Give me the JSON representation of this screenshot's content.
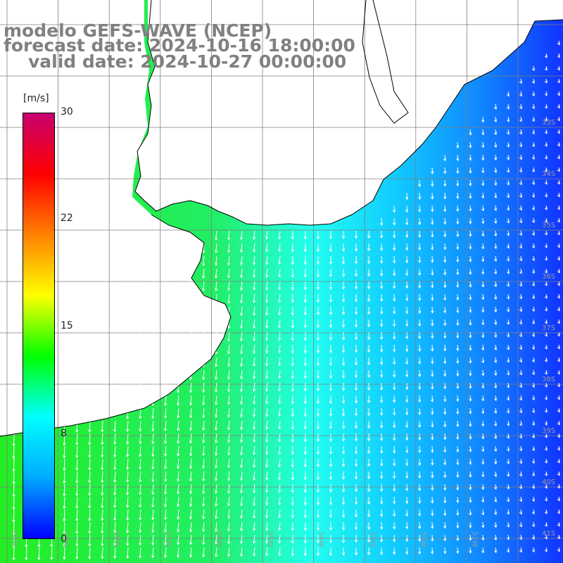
{
  "titles": {
    "model": "modelo GEFS-WAVE (NCEP)",
    "forecast": "forecast date: 2024-10-16 18:00:00",
    "valid": "valid date: 2024-10-27 00:00:00"
  },
  "colorbar": {
    "units": "[m/s]",
    "ticks": [
      "30",
      "22",
      "15",
      "8",
      "0"
    ],
    "tick_values": [
      30,
      22,
      15,
      8,
      0
    ],
    "range": [
      0,
      30
    ],
    "colors": [
      "#0000ff",
      "#00aaff",
      "#00ffff",
      "#00ff00",
      "#ffff00",
      "#ff8000",
      "#ff0000",
      "#c8006e"
    ]
  },
  "map": {
    "lat_labels": [
      "33S",
      "34S",
      "35S",
      "36S",
      "37S",
      "38S",
      "39S",
      "40S",
      "41S"
    ],
    "lat_values": [
      -33,
      -34,
      -35,
      -36,
      -37,
      -38,
      -39,
      -40,
      -41
    ],
    "lon_labels": [
      "60W",
      "59W",
      "58W",
      "57W",
      "56W",
      "55W",
      "54W",
      "53W",
      "52W",
      "51W"
    ],
    "lon_values": [
      -60,
      -59,
      -58,
      -57,
      -56,
      -55,
      -54,
      -53,
      -52,
      -51
    ],
    "land_color": "#ffffff",
    "coast_color": "#000000",
    "grid_color": "#7f7f7f",
    "arrow_color": "#ffffff",
    "label_color": "#9a9a9a"
  }
}
